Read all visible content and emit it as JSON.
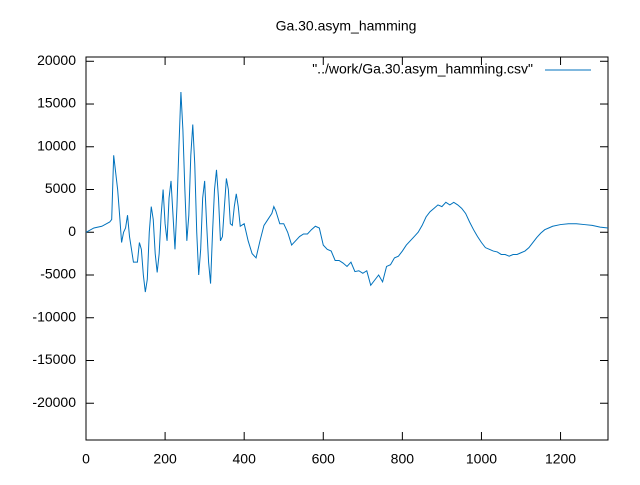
{
  "chart_data": {
    "type": "line",
    "title": "Ga.30.asym_hamming",
    "x": [
      0,
      20,
      40,
      60,
      65,
      70,
      75,
      80,
      85,
      90,
      95,
      100,
      105,
      110,
      115,
      120,
      130,
      135,
      140,
      145,
      150,
      155,
      160,
      165,
      170,
      175,
      180,
      185,
      190,
      195,
      200,
      205,
      210,
      215,
      220,
      225,
      230,
      235,
      240,
      245,
      250,
      255,
      260,
      265,
      270,
      275,
      280,
      285,
      290,
      295,
      300,
      305,
      310,
      315,
      320,
      325,
      330,
      335,
      340,
      345,
      350,
      355,
      360,
      365,
      370,
      375,
      380,
      385,
      390,
      400,
      410,
      420,
      430,
      440,
      450,
      460,
      470,
      475,
      480,
      490,
      500,
      510,
      520,
      530,
      540,
      550,
      560,
      570,
      580,
      590,
      600,
      610,
      620,
      630,
      640,
      650,
      660,
      670,
      680,
      690,
      700,
      710,
      720,
      730,
      740,
      750,
      760,
      770,
      780,
      790,
      800,
      810,
      820,
      830,
      840,
      850,
      860,
      870,
      880,
      890,
      900,
      910,
      920,
      930,
      940,
      950,
      960,
      970,
      980,
      990,
      1000,
      1010,
      1020,
      1030,
      1040,
      1050,
      1060,
      1070,
      1080,
      1090,
      1100,
      1110,
      1120,
      1130,
      1140,
      1150,
      1160,
      1170,
      1180,
      1200,
      1220,
      1240,
      1260,
      1280,
      1300,
      1320
    ],
    "series": [
      {
        "name": "\"../work/Ga.30.asym_hamming.csv\"",
        "color": "#0072bd",
        "values": [
          0,
          500,
          700,
          1200,
          1500,
          9000,
          7000,
          5000,
          2000,
          -1200,
          0,
          500,
          2000,
          -500,
          -2000,
          -3500,
          -3500,
          -1200,
          -2000,
          -5000,
          -7000,
          -5500,
          0,
          3000,
          1500,
          -2500,
          -4700,
          -2500,
          2000,
          5000,
          1000,
          -1000,
          4000,
          6000,
          2000,
          -2000,
          3000,
          10000,
          16400,
          12000,
          5000,
          -1000,
          2000,
          9000,
          12600,
          8000,
          0,
          -5000,
          -2000,
          4000,
          6000,
          1000,
          -3500,
          -6000,
          0,
          5000,
          7300,
          4000,
          -1000,
          -500,
          3000,
          6300,
          5000,
          1000,
          800,
          3000,
          4500,
          3000,
          700,
          1000,
          -1000,
          -2500,
          -3000,
          -1000,
          800,
          1500,
          2200,
          3000,
          2500,
          1000,
          1000,
          0,
          -1500,
          -1000,
          -500,
          -200,
          -200,
          300,
          700,
          500,
          -1500,
          -2000,
          -2200,
          -3300,
          -3300,
          -3600,
          -4000,
          -3500,
          -4600,
          -4500,
          -4800,
          -4500,
          -6200,
          -5600,
          -5000,
          -5800,
          -4000,
          -3800,
          -3000,
          -2800,
          -2200,
          -1500,
          -1000,
          -500,
          0,
          800,
          1800,
          2400,
          2800,
          3200,
          3000,
          3500,
          3200,
          3500,
          3200,
          2800,
          2200,
          1200,
          300,
          -500,
          -1200,
          -1800,
          -2000,
          -2200,
          -2300,
          -2600,
          -2600,
          -2800,
          -2600,
          -2600,
          -2400,
          -2200,
          -1800,
          -1200,
          -600,
          -100,
          300,
          500,
          700,
          900,
          1000,
          1000,
          900,
          800,
          600,
          500
        ]
      }
    ],
    "xlim": [
      0,
      1320
    ],
    "ylim": [
      -24300,
      20500
    ],
    "xticks": [
      0,
      200,
      400,
      600,
      800,
      1000,
      1200
    ],
    "yticks": [
      -20000,
      -15000,
      -10000,
      -5000,
      0,
      5000,
      10000,
      15000,
      20000
    ],
    "legend": "top-right"
  }
}
